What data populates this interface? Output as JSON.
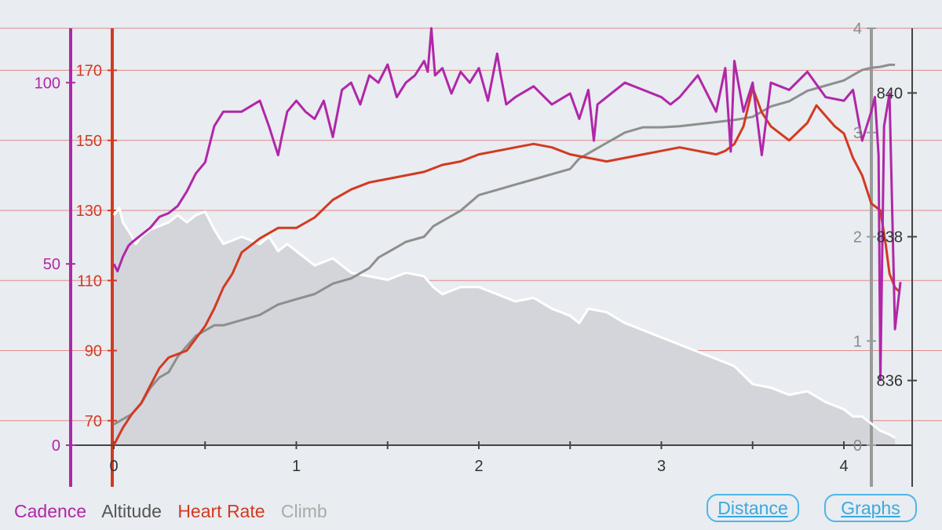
{
  "legend": {
    "cadence": "Cadence",
    "altitude": "Altitude",
    "heart_rate": "Heart Rate",
    "climb": "Climb"
  },
  "buttons": {
    "distance": "Distance",
    "graphs": "Graphs"
  },
  "colors": {
    "background": "#e9ecf0",
    "cadence": "#b027a8",
    "heart_rate": "#d23a22",
    "climb_line": "#8e8e8e",
    "altitude_line": "#ffffff",
    "altitude_fill": "#d3d5da",
    "axis": "#444444",
    "gridline": "#e08a8a",
    "button": "#3aa8de",
    "legend_altitude": "#555555",
    "legend_climb": "#aaaaaa"
  },
  "chart_data": {
    "type": "line",
    "x_axis": {
      "label": "",
      "range": [
        0,
        4.3
      ],
      "ticks": [
        0,
        1,
        2,
        3,
        4
      ]
    },
    "axes": {
      "cadence": {
        "range": [
          0,
          115
        ],
        "ticks": [
          0,
          50,
          100
        ]
      },
      "heart_rate": {
        "range": [
          63,
          182
        ],
        "ticks": [
          70,
          90,
          110,
          130,
          150,
          170
        ]
      },
      "climb": {
        "range": [
          0,
          4
        ],
        "ticks": [
          0,
          1,
          2,
          3,
          4
        ]
      },
      "altitude": {
        "range": [
          835.1,
          840.9
        ],
        "ticks": [
          836,
          838,
          840
        ]
      }
    },
    "grid": "horizontal lines at heart rate ticks",
    "series": [
      {
        "name": "Cadence",
        "axis": "cadence",
        "x": [
          0,
          0.02,
          0.05,
          0.08,
          0.1,
          0.15,
          0.2,
          0.25,
          0.3,
          0.35,
          0.4,
          0.45,
          0.5,
          0.55,
          0.6,
          0.7,
          0.8,
          0.85,
          0.9,
          0.92,
          0.95,
          1.0,
          1.05,
          1.1,
          1.15,
          1.2,
          1.25,
          1.3,
          1.35,
          1.4,
          1.45,
          1.5,
          1.55,
          1.6,
          1.65,
          1.7,
          1.72,
          1.74,
          1.76,
          1.8,
          1.85,
          1.9,
          1.95,
          2.0,
          2.05,
          2.1,
          2.12,
          2.15,
          2.2,
          2.3,
          2.4,
          2.5,
          2.55,
          2.6,
          2.63,
          2.65,
          2.7,
          2.8,
          2.9,
          3.0,
          3.05,
          3.1,
          3.2,
          3.3,
          3.35,
          3.38,
          3.4,
          3.45,
          3.5,
          3.55,
          3.6,
          3.7,
          3.8,
          3.9,
          4.0,
          4.05,
          4.1,
          4.15,
          4.17,
          4.19,
          4.2,
          4.22,
          4.25,
          4.28,
          4.31
        ],
        "values": [
          50,
          48,
          52,
          55,
          56,
          58,
          60,
          63,
          64,
          66,
          70,
          75,
          78,
          88,
          92,
          92,
          95,
          88,
          80,
          85,
          92,
          95,
          92,
          90,
          95,
          85,
          98,
          100,
          94,
          102,
          100,
          105,
          96,
          100,
          102,
          106,
          103,
          115,
          102,
          104,
          97,
          103,
          100,
          104,
          95,
          108,
          102,
          94,
          96,
          99,
          94,
          97,
          90,
          98,
          84,
          94,
          96,
          100,
          98,
          96,
          94,
          96,
          102,
          92,
          104,
          81,
          106,
          92,
          100,
          80,
          100,
          98,
          103,
          96,
          95,
          98,
          84,
          92,
          96,
          80,
          18,
          88,
          97,
          32,
          45
        ]
      },
      {
        "name": "Heart Rate",
        "axis": "heart_rate",
        "x": [
          0,
          0.05,
          0.1,
          0.15,
          0.2,
          0.25,
          0.3,
          0.4,
          0.5,
          0.55,
          0.6,
          0.65,
          0.7,
          0.8,
          0.9,
          1.0,
          1.1,
          1.2,
          1.3,
          1.4,
          1.5,
          1.6,
          1.7,
          1.8,
          1.9,
          2.0,
          2.1,
          2.2,
          2.3,
          2.4,
          2.5,
          2.6,
          2.7,
          2.8,
          2.9,
          3.0,
          3.1,
          3.2,
          3.3,
          3.35,
          3.4,
          3.45,
          3.5,
          3.55,
          3.6,
          3.7,
          3.8,
          3.85,
          3.9,
          3.95,
          4.0,
          4.05,
          4.1,
          4.15,
          4.2,
          4.23,
          4.25,
          4.28,
          4.3
        ],
        "values": [
          63,
          68,
          72,
          75,
          80,
          85,
          88,
          90,
          97,
          102,
          108,
          112,
          118,
          122,
          125,
          125,
          128,
          133,
          136,
          138,
          139,
          140,
          141,
          143,
          144,
          146,
          147,
          148,
          149,
          148,
          146,
          145,
          144,
          145,
          146,
          147,
          148,
          147,
          146,
          147,
          149,
          154,
          165,
          158,
          154,
          150,
          155,
          160,
          157,
          154,
          152,
          145,
          140,
          132,
          130,
          120,
          112,
          108,
          107
        ]
      },
      {
        "name": "Climb",
        "axis": "climb",
        "x": [
          0,
          0.05,
          0.1,
          0.15,
          0.2,
          0.25,
          0.3,
          0.35,
          0.4,
          0.45,
          0.5,
          0.55,
          0.6,
          0.7,
          0.8,
          0.85,
          0.9,
          1.0,
          1.1,
          1.2,
          1.3,
          1.4,
          1.45,
          1.5,
          1.55,
          1.6,
          1.7,
          1.75,
          1.8,
          1.9,
          2.0,
          2.1,
          2.2,
          2.3,
          2.4,
          2.5,
          2.55,
          2.6,
          2.7,
          2.75,
          2.8,
          2.9,
          3.0,
          3.1,
          3.2,
          3.3,
          3.4,
          3.5,
          3.6,
          3.7,
          3.75,
          3.8,
          3.9,
          4.0,
          4.05,
          4.1,
          4.15,
          4.2,
          4.25,
          4.28
        ],
        "values": [
          0.2,
          0.25,
          0.3,
          0.4,
          0.55,
          0.65,
          0.7,
          0.85,
          0.95,
          1.05,
          1.1,
          1.15,
          1.15,
          1.2,
          1.25,
          1.3,
          1.35,
          1.4,
          1.45,
          1.55,
          1.6,
          1.7,
          1.8,
          1.85,
          1.9,
          1.95,
          2.0,
          2.1,
          2.15,
          2.25,
          2.4,
          2.45,
          2.5,
          2.55,
          2.6,
          2.65,
          2.75,
          2.8,
          2.9,
          2.95,
          3.0,
          3.05,
          3.05,
          3.06,
          3.08,
          3.1,
          3.12,
          3.15,
          3.25,
          3.3,
          3.35,
          3.4,
          3.45,
          3.5,
          3.55,
          3.6,
          3.62,
          3.63,
          3.65,
          3.65
        ]
      },
      {
        "name": "Altitude",
        "axis": "altitude",
        "x": [
          0,
          0.03,
          0.05,
          0.1,
          0.12,
          0.15,
          0.2,
          0.3,
          0.35,
          0.4,
          0.45,
          0.5,
          0.55,
          0.6,
          0.7,
          0.8,
          0.85,
          0.9,
          0.95,
          1.0,
          1.05,
          1.1,
          1.2,
          1.3,
          1.4,
          1.5,
          1.6,
          1.7,
          1.75,
          1.8,
          1.9,
          2.0,
          2.1,
          2.2,
          2.3,
          2.4,
          2.5,
          2.55,
          2.6,
          2.7,
          2.8,
          2.9,
          3.0,
          3.1,
          3.2,
          3.3,
          3.4,
          3.5,
          3.6,
          3.7,
          3.8,
          3.9,
          4.0,
          4.05,
          4.1,
          4.15,
          4.2,
          4.25,
          4.28
        ],
        "values": [
          838.3,
          838.4,
          838.2,
          838.0,
          837.9,
          838.0,
          838.1,
          838.2,
          838.3,
          838.2,
          838.3,
          838.35,
          838.1,
          837.9,
          838.0,
          837.9,
          838.0,
          837.8,
          837.9,
          837.8,
          837.7,
          837.6,
          837.7,
          837.5,
          837.45,
          837.4,
          837.5,
          837.45,
          837.3,
          837.2,
          837.3,
          837.3,
          837.2,
          837.1,
          837.15,
          837.0,
          836.9,
          836.8,
          837.0,
          836.95,
          836.8,
          836.7,
          836.6,
          836.5,
          836.4,
          836.3,
          836.2,
          835.95,
          835.9,
          835.8,
          835.85,
          835.7,
          835.6,
          835.5,
          835.5,
          835.4,
          835.3,
          835.25,
          835.2
        ]
      }
    ]
  }
}
